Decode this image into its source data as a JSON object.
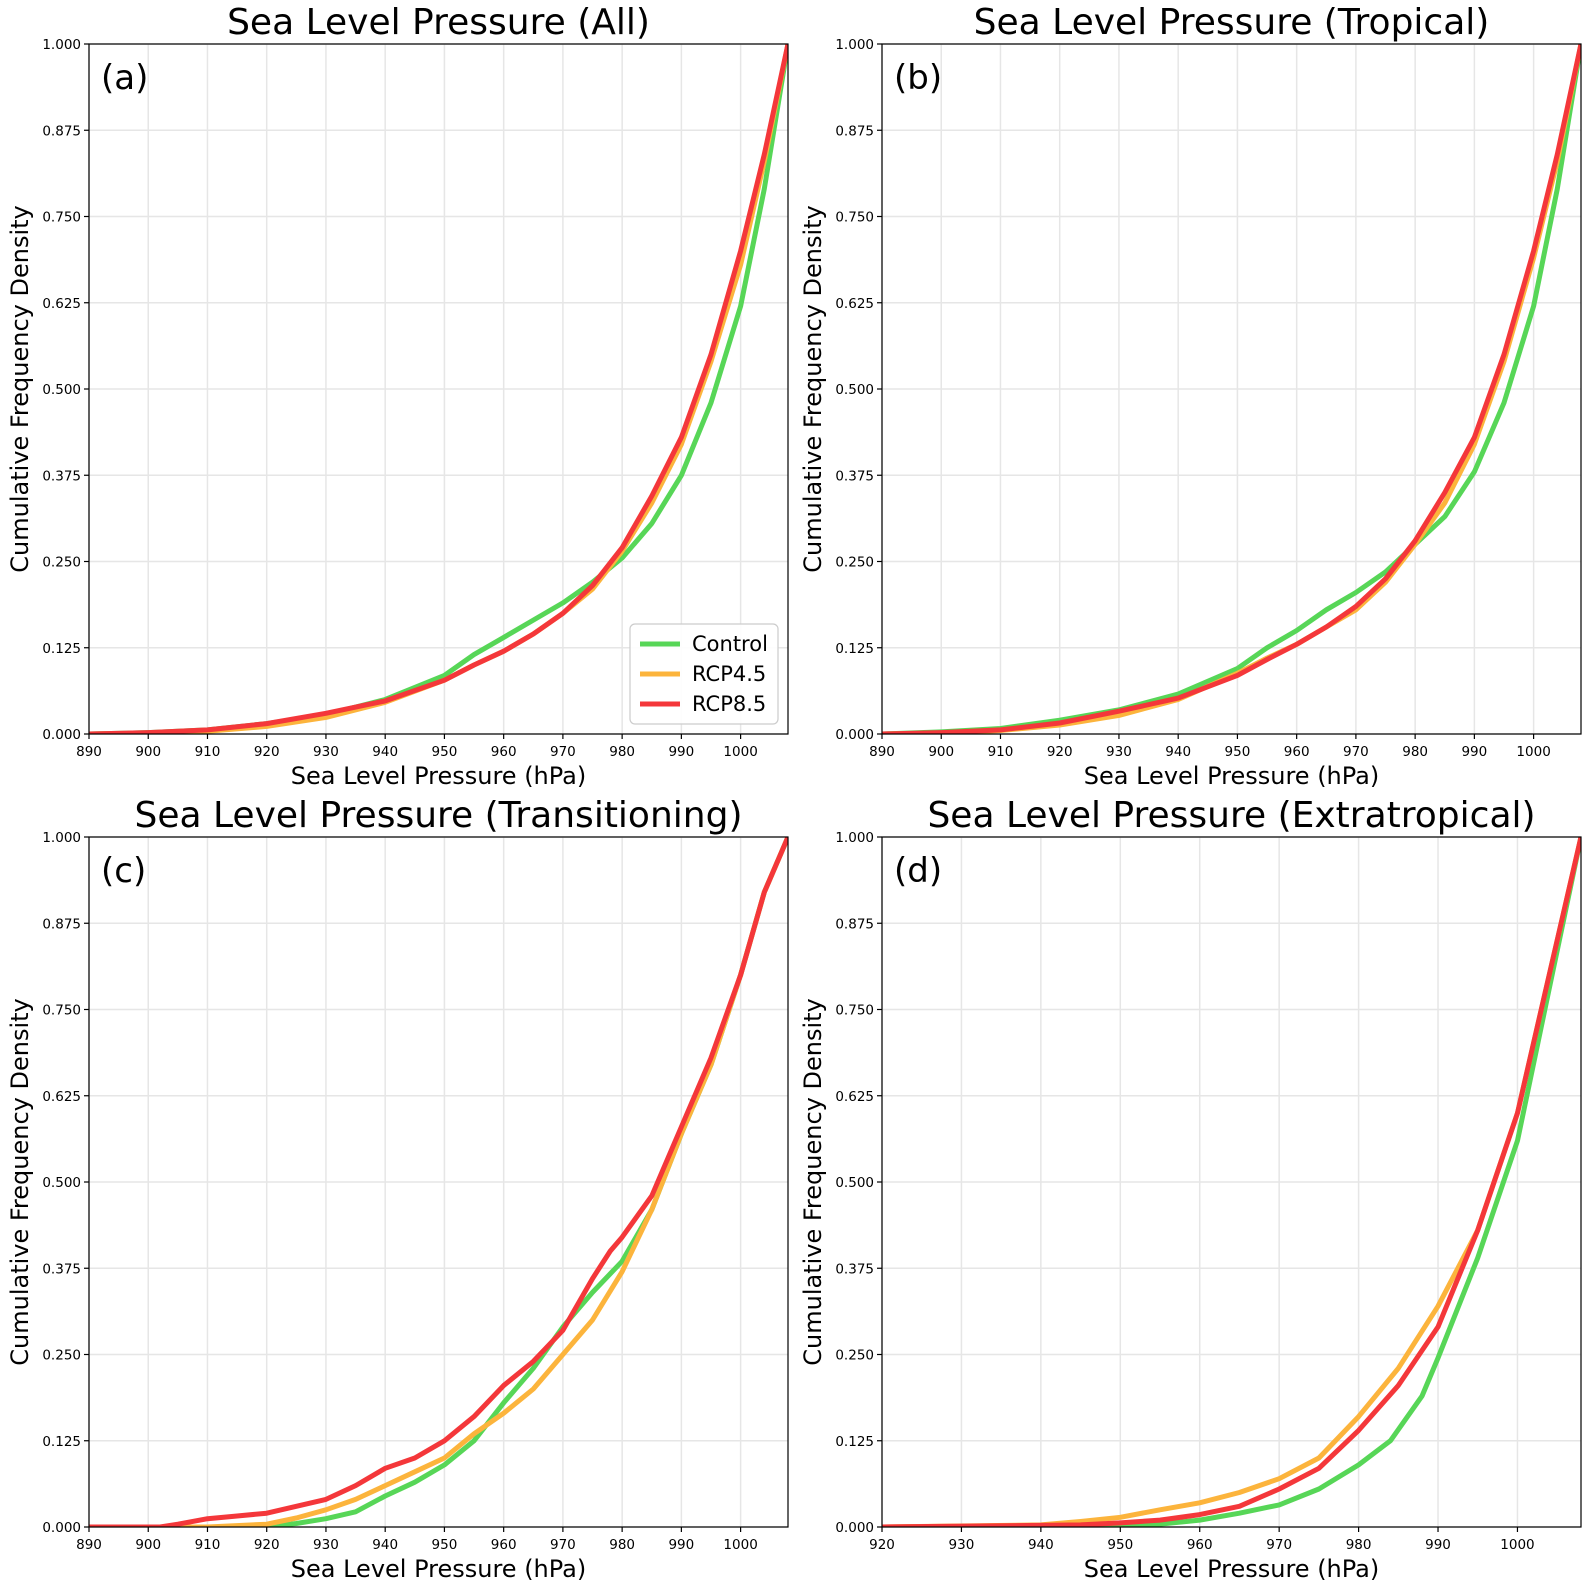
{
  "series_meta": [
    {
      "name": "Control",
      "color": "#57d657"
    },
    {
      "name": "RCP4.5",
      "color": "#fcb43c"
    },
    {
      "name": "RCP8.5",
      "color": "#f4373a"
    }
  ],
  "chart_data": [
    {
      "type": "line",
      "panel": "(a)",
      "title": "Sea Level Pressure (All)",
      "xlabel": "Sea Level Pressure (hPa)",
      "ylabel": "Cumulative Frequency Density",
      "xlim": [
        890,
        1008
      ],
      "ylim": [
        0,
        1
      ],
      "xticks": [
        "890",
        "900",
        "910",
        "920",
        "930",
        "940",
        "950",
        "960",
        "970",
        "980",
        "990",
        "1000"
      ],
      "yticks": [
        "0.000",
        "0.125",
        "0.250",
        "0.375",
        "0.500",
        "0.625",
        "0.750",
        "0.875",
        "1.000"
      ],
      "grid": true,
      "legend": "lower-right",
      "series": [
        {
          "name": "Control",
          "x": [
            890,
            900,
            910,
            920,
            930,
            940,
            950,
            955,
            960,
            965,
            970,
            975,
            980,
            985,
            990,
            995,
            1000,
            1004,
            1008
          ],
          "y": [
            0,
            0.002,
            0.006,
            0.015,
            0.028,
            0.05,
            0.085,
            0.115,
            0.14,
            0.165,
            0.19,
            0.22,
            0.255,
            0.305,
            0.375,
            0.48,
            0.62,
            0.79,
            1.0
          ]
        },
        {
          "name": "RCP4.5",
          "x": [
            890,
            900,
            910,
            920,
            930,
            940,
            950,
            955,
            960,
            965,
            970,
            975,
            980,
            985,
            990,
            995,
            1000,
            1004,
            1008
          ],
          "y": [
            0,
            0.001,
            0.004,
            0.011,
            0.024,
            0.046,
            0.078,
            0.1,
            0.12,
            0.145,
            0.175,
            0.21,
            0.265,
            0.335,
            0.42,
            0.54,
            0.68,
            0.83,
            1.0
          ]
        },
        {
          "name": "RCP8.5",
          "x": [
            890,
            900,
            910,
            920,
            930,
            940,
            950,
            955,
            960,
            965,
            970,
            975,
            980,
            985,
            990,
            995,
            1000,
            1004,
            1008
          ],
          "y": [
            0,
            0.002,
            0.006,
            0.015,
            0.03,
            0.048,
            0.078,
            0.1,
            0.12,
            0.145,
            0.175,
            0.215,
            0.27,
            0.345,
            0.43,
            0.55,
            0.7,
            0.84,
            1.0
          ]
        }
      ]
    },
    {
      "type": "line",
      "panel": "(b)",
      "title": "Sea Level Pressure (Tropical)",
      "xlabel": "Sea Level Pressure (hPa)",
      "ylabel": "Cumulative Frequency Density",
      "xlim": [
        890,
        1008
      ],
      "ylim": [
        0,
        1
      ],
      "xticks": [
        "890",
        "900",
        "910",
        "920",
        "930",
        "940",
        "950",
        "960",
        "970",
        "980",
        "990",
        "1000"
      ],
      "yticks": [
        "0.000",
        "0.125",
        "0.250",
        "0.375",
        "0.500",
        "0.625",
        "0.750",
        "0.875",
        "1.000"
      ],
      "grid": true,
      "series": [
        {
          "name": "Control",
          "x": [
            890,
            900,
            910,
            920,
            930,
            940,
            950,
            955,
            960,
            965,
            970,
            975,
            980,
            985,
            990,
            995,
            1000,
            1004,
            1008
          ],
          "y": [
            0,
            0.003,
            0.008,
            0.02,
            0.035,
            0.058,
            0.095,
            0.125,
            0.15,
            0.18,
            0.205,
            0.235,
            0.275,
            0.315,
            0.38,
            0.48,
            0.62,
            0.79,
            1.0
          ]
        },
        {
          "name": "RCP4.5",
          "x": [
            890,
            900,
            910,
            920,
            930,
            940,
            950,
            955,
            960,
            965,
            970,
            975,
            980,
            985,
            990,
            995,
            1000,
            1004,
            1008
          ],
          "y": [
            0,
            0.001,
            0.005,
            0.013,
            0.027,
            0.05,
            0.088,
            0.11,
            0.13,
            0.155,
            0.18,
            0.22,
            0.275,
            0.335,
            0.42,
            0.54,
            0.69,
            0.83,
            1.0
          ]
        },
        {
          "name": "RCP8.5",
          "x": [
            890,
            900,
            910,
            920,
            930,
            940,
            950,
            955,
            960,
            965,
            970,
            975,
            980,
            985,
            990,
            995,
            1000,
            1004,
            1008
          ],
          "y": [
            0,
            0.002,
            0.006,
            0.016,
            0.033,
            0.052,
            0.085,
            0.108,
            0.13,
            0.155,
            0.185,
            0.225,
            0.28,
            0.35,
            0.43,
            0.55,
            0.7,
            0.84,
            1.0
          ]
        }
      ]
    },
    {
      "type": "line",
      "panel": "(c)",
      "title": "Sea Level Pressure (Transitioning)",
      "xlabel": "Sea Level Pressure (hPa)",
      "ylabel": "Cumulative Frequency Density",
      "xlim": [
        890,
        1008
      ],
      "ylim": [
        0,
        1
      ],
      "xticks": [
        "890",
        "900",
        "910",
        "920",
        "930",
        "940",
        "950",
        "960",
        "970",
        "980",
        "990",
        "1000"
      ],
      "yticks": [
        "0.000",
        "0.125",
        "0.250",
        "0.375",
        "0.500",
        "0.625",
        "0.750",
        "0.875",
        "1.000"
      ],
      "grid": true,
      "series": [
        {
          "name": "Control",
          "x": [
            890,
            920,
            925,
            930,
            935,
            940,
            945,
            950,
            955,
            960,
            965,
            970,
            975,
            980,
            985,
            990,
            995,
            1000,
            1004,
            1008
          ],
          "y": [
            0,
            0,
            0.005,
            0.012,
            0.022,
            0.045,
            0.065,
            0.09,
            0.125,
            0.18,
            0.23,
            0.29,
            0.34,
            0.385,
            0.46,
            0.57,
            0.67,
            0.8,
            0.92,
            1.0
          ]
        },
        {
          "name": "RCP4.5",
          "x": [
            890,
            910,
            920,
            925,
            930,
            935,
            940,
            945,
            950,
            955,
            960,
            965,
            970,
            975,
            980,
            985,
            990,
            995,
            1000,
            1004,
            1008
          ],
          "y": [
            0,
            0,
            0.004,
            0.013,
            0.025,
            0.04,
            0.06,
            0.08,
            0.1,
            0.135,
            0.165,
            0.2,
            0.25,
            0.3,
            0.37,
            0.46,
            0.57,
            0.67,
            0.8,
            0.92,
            1.0
          ]
        },
        {
          "name": "RCP8.5",
          "x": [
            890,
            902,
            905,
            910,
            915,
            920,
            925,
            930,
            935,
            940,
            945,
            950,
            955,
            960,
            965,
            970,
            975,
            978,
            980,
            985,
            990,
            995,
            1000,
            1004,
            1008
          ],
          "y": [
            0,
            0,
            0.004,
            0.012,
            0.016,
            0.02,
            0.03,
            0.04,
            0.06,
            0.085,
            0.1,
            0.125,
            0.16,
            0.205,
            0.24,
            0.285,
            0.36,
            0.4,
            0.42,
            0.48,
            0.58,
            0.68,
            0.8,
            0.92,
            1.0
          ]
        }
      ]
    },
    {
      "type": "line",
      "panel": "(d)",
      "title": "Sea Level Pressure (Extratropical)",
      "xlabel": "Sea Level Pressure (hPa)",
      "ylabel": "Cumulative Frequency Density",
      "xlim": [
        920,
        1008
      ],
      "ylim": [
        0,
        1
      ],
      "xticks": [
        "920",
        "930",
        "940",
        "950",
        "960",
        "970",
        "980",
        "990",
        "1000"
      ],
      "yticks": [
        "0.000",
        "0.125",
        "0.250",
        "0.375",
        "0.500",
        "0.625",
        "0.750",
        "0.875",
        "1.000"
      ],
      "grid": true,
      "series": [
        {
          "name": "Control",
          "x": [
            920,
            950,
            955,
            960,
            965,
            970,
            975,
            980,
            984,
            988,
            990,
            995,
            1000,
            1004,
            1008
          ],
          "y": [
            0,
            0.001,
            0.004,
            0.01,
            0.02,
            0.032,
            0.055,
            0.09,
            0.125,
            0.19,
            0.245,
            0.39,
            0.56,
            0.78,
            1.0
          ]
        },
        {
          "name": "RCP4.5",
          "x": [
            920,
            940,
            945,
            950,
            955,
            960,
            965,
            970,
            975,
            980,
            985,
            990,
            995,
            1000,
            1004,
            1008
          ],
          "y": [
            0,
            0.003,
            0.008,
            0.014,
            0.025,
            0.035,
            0.05,
            0.07,
            0.1,
            0.16,
            0.23,
            0.32,
            0.43,
            0.6,
            0.8,
            1.0
          ]
        },
        {
          "name": "RCP8.5",
          "x": [
            920,
            945,
            950,
            955,
            960,
            965,
            970,
            975,
            980,
            985,
            990,
            995,
            1000,
            1004,
            1008
          ],
          "y": [
            0,
            0.003,
            0.006,
            0.01,
            0.018,
            0.03,
            0.055,
            0.085,
            0.14,
            0.205,
            0.29,
            0.43,
            0.6,
            0.8,
            1.0
          ]
        }
      ]
    }
  ]
}
